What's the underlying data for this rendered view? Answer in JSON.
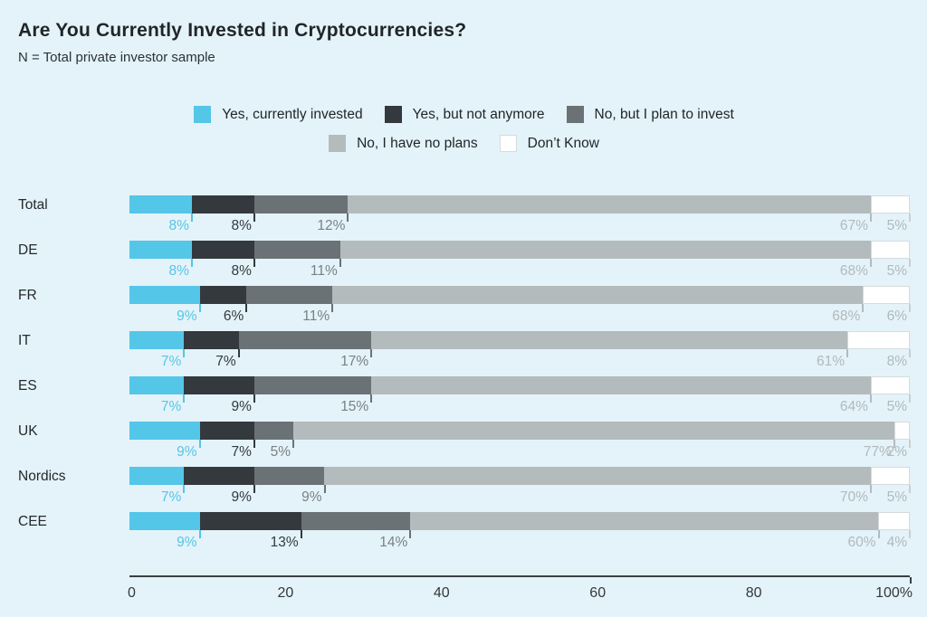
{
  "header": {
    "title": "Are You Currently Invested in Cryptocurrencies?",
    "subtitle": "N = Total private investor sample"
  },
  "chart_data": {
    "type": "bar",
    "orientation": "horizontal",
    "stacked": true,
    "unit": "%",
    "grid": false,
    "legend_position": "top-center",
    "xlim": [
      0,
      100
    ],
    "x_ticks": [
      "0",
      "20",
      "40",
      "60",
      "80",
      "100%"
    ],
    "x_tick_values": [
      0,
      20,
      40,
      60,
      80,
      100
    ],
    "categories": [
      "Total",
      "DE",
      "FR",
      "IT",
      "ES",
      "UK",
      "Nordics",
      "CEE"
    ],
    "series": [
      {
        "name": "Yes, currently invested",
        "color": "#54C6E8",
        "label_color": "#55C5E8",
        "values": [
          8,
          8,
          9,
          7,
          7,
          9,
          7,
          9
        ]
      },
      {
        "name": "Yes, but not anymore",
        "color": "#34393E",
        "label_color": "#34393E",
        "values": [
          8,
          8,
          6,
          7,
          9,
          7,
          9,
          13
        ]
      },
      {
        "name": "No, but I plan to invest",
        "color": "#6B7276",
        "label_color": "#7A8185",
        "values": [
          12,
          11,
          11,
          17,
          15,
          5,
          9,
          14
        ]
      },
      {
        "name": "No, I have no plans",
        "color": "#B4BBBD",
        "label_color": "#B2B9BC",
        "values": [
          67,
          68,
          68,
          61,
          64,
          77,
          70,
          60
        ]
      },
      {
        "name": "Don’t Know",
        "color": "#FFFFFF",
        "border_color": "#D6DBDD",
        "tick_color": "#C9CFD1",
        "label_color": "#B2B9BC",
        "values": [
          5,
          5,
          6,
          8,
          5,
          2,
          5,
          4
        ]
      }
    ]
  }
}
